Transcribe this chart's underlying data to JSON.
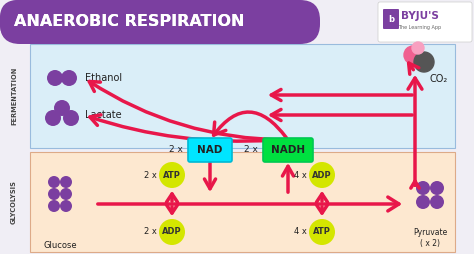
{
  "title": "ANAEROBIC RESPIRATION",
  "title_bg": "#7b3fa0",
  "title_color": "#ffffff",
  "outer_bg": "#f0eef5",
  "fermentation_bg": "#daeef8",
  "glycolysis_bg": "#fde8d0",
  "fermentation_label": "FERMENTATION",
  "glycolysis_label": "GLYCOLYSIS",
  "ethanol_label": "Ethanol",
  "lactate_label": "Lactate",
  "co2_label": "CO₂",
  "glucose_label": "Glucose",
  "pyruvate_label": "Pyruvate\n( x 2)",
  "nad_label": "NAD",
  "nadh_label": "NADH",
  "nad_prefix": "2 x",
  "nadh_prefix": "2 x",
  "atp1_label": "ATP",
  "adp1_label": "ADP",
  "adp2_label": "ADP",
  "atp2_label": "ATP",
  "atp1_prefix": "2 x",
  "adp1_prefix": "2 x",
  "adp2_prefix": "4 x",
  "atp2_prefix": "4 x",
  "arrow_color": "#e8174a",
  "nad_bg": "#00e5ff",
  "nadh_bg": "#00e040",
  "atp_bg": "#d4e600",
  "molecule_color": "#7b3fa0",
  "co2_pink": "#f06090",
  "co2_dark": "#555555"
}
